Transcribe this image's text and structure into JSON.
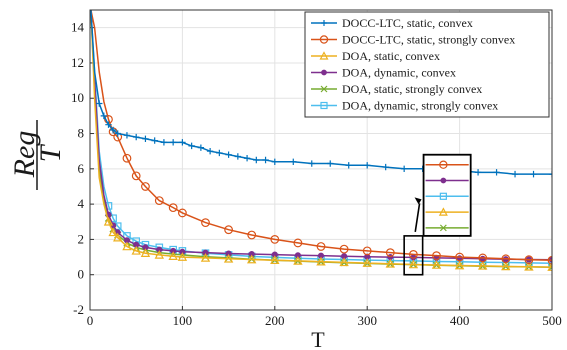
{
  "chart_data": {
    "type": "line",
    "xlabel": "T",
    "ylabel_numerator": "Reg",
    "ylabel_denominator": "T",
    "xlim": [
      0,
      500
    ],
    "ylim": [
      -2,
      15
    ],
    "xticks": [
      0,
      100,
      200,
      300,
      400,
      500
    ],
    "yticks": [
      -2,
      0,
      2,
      4,
      6,
      8,
      10,
      12,
      14
    ],
    "grid": true,
    "legend_position": "top-right",
    "series": [
      {
        "name": "DOCC-LTC, static, convex",
        "color": "#0072BD",
        "marker": "plus",
        "x": [
          1,
          5,
          10,
          15,
          20,
          25,
          30,
          40,
          50,
          60,
          70,
          80,
          90,
          100,
          110,
          120,
          130,
          140,
          150,
          160,
          170,
          180,
          190,
          200,
          220,
          240,
          260,
          280,
          300,
          320,
          340,
          360,
          380,
          400,
          420,
          440,
          460,
          480,
          500
        ],
        "y": [
          15,
          11.5,
          9.7,
          9.0,
          8.5,
          8.2,
          8.0,
          7.9,
          7.8,
          7.7,
          7.6,
          7.5,
          7.5,
          7.5,
          7.3,
          7.2,
          7.0,
          6.9,
          6.8,
          6.7,
          6.6,
          6.5,
          6.5,
          6.4,
          6.4,
          6.3,
          6.3,
          6.2,
          6.2,
          6.1,
          6.0,
          6.0,
          5.9,
          5.9,
          5.8,
          5.8,
          5.7,
          5.7,
          5.7
        ]
      },
      {
        "name": "DOCC-LTC, static, strongly convex",
        "color": "#D95319",
        "marker": "circle",
        "x": [
          1,
          5,
          10,
          15,
          20,
          25,
          30,
          40,
          50,
          60,
          75,
          90,
          100,
          125,
          150,
          175,
          200,
          225,
          250,
          275,
          300,
          325,
          350,
          375,
          400,
          425,
          450,
          475,
          500
        ],
        "y": [
          15,
          14,
          11.5,
          9.8,
          8.8,
          8.1,
          7.8,
          6.6,
          5.6,
          5.0,
          4.2,
          3.8,
          3.5,
          2.95,
          2.55,
          2.25,
          2.0,
          1.8,
          1.6,
          1.45,
          1.35,
          1.25,
          1.15,
          1.08,
          1.0,
          0.95,
          0.9,
          0.85,
          0.82
        ]
      },
      {
        "name": "DOA, static, convex",
        "color": "#EDB120",
        "marker": "triangle",
        "x": [
          1,
          5,
          10,
          15,
          20,
          25,
          30,
          40,
          50,
          60,
          75,
          90,
          100,
          125,
          150,
          175,
          200,
          225,
          250,
          275,
          300,
          325,
          350,
          375,
          400,
          425,
          450,
          475,
          500
        ],
        "y": [
          15,
          10,
          5.5,
          4.0,
          3.0,
          2.4,
          2.1,
          1.6,
          1.35,
          1.22,
          1.12,
          1.05,
          1.0,
          0.95,
          0.9,
          0.86,
          0.82,
          0.78,
          0.74,
          0.7,
          0.66,
          0.62,
          0.58,
          0.55,
          0.52,
          0.5,
          0.47,
          0.45,
          0.43
        ]
      },
      {
        "name": "DOA, dynamic, convex",
        "color": "#7E2F8E",
        "marker": "dot",
        "x": [
          1,
          5,
          10,
          15,
          20,
          25,
          30,
          40,
          50,
          60,
          75,
          90,
          100,
          125,
          150,
          175,
          200,
          225,
          250,
          275,
          300,
          325,
          350,
          375,
          400,
          425,
          450,
          475,
          500
        ],
        "y": [
          15,
          11,
          6.5,
          4.5,
          3.4,
          2.8,
          2.4,
          1.95,
          1.7,
          1.55,
          1.42,
          1.35,
          1.3,
          1.25,
          1.2,
          1.17,
          1.14,
          1.1,
          1.08,
          1.05,
          1.02,
          1.0,
          0.98,
          0.95,
          0.93,
          0.9,
          0.88,
          0.86,
          0.85
        ]
      },
      {
        "name": "DOA, static, strongly convex",
        "color": "#77AC30",
        "marker": "x",
        "x": [
          1,
          5,
          10,
          15,
          20,
          25,
          30,
          40,
          50,
          60,
          75,
          90,
          100,
          125,
          150,
          175,
          200,
          225,
          250,
          275,
          300,
          325,
          350,
          375,
          400,
          425,
          450,
          475,
          500
        ],
        "y": [
          15,
          10.5,
          6.0,
          4.2,
          3.2,
          2.6,
          2.25,
          1.8,
          1.55,
          1.4,
          1.25,
          1.17,
          1.12,
          1.02,
          0.95,
          0.88,
          0.82,
          0.77,
          0.72,
          0.68,
          0.64,
          0.6,
          0.57,
          0.54,
          0.51,
          0.48,
          0.46,
          0.44,
          0.42
        ]
      },
      {
        "name": "DOA, dynamic, strongly convex",
        "color": "#4DBEEE",
        "marker": "square",
        "x": [
          1,
          5,
          10,
          15,
          20,
          25,
          30,
          40,
          50,
          60,
          75,
          90,
          100,
          125,
          150,
          175,
          200,
          225,
          250,
          275,
          300,
          325,
          350,
          375,
          400,
          425,
          450,
          475,
          500
        ],
        "y": [
          15,
          11.5,
          7.0,
          5.0,
          3.9,
          3.2,
          2.75,
          2.2,
          1.9,
          1.7,
          1.55,
          1.42,
          1.35,
          1.22,
          1.12,
          1.04,
          0.98,
          0.93,
          0.89,
          0.86,
          0.83,
          0.8,
          0.78,
          0.75,
          0.73,
          0.71,
          0.69,
          0.67,
          0.65
        ]
      }
    ]
  }
}
